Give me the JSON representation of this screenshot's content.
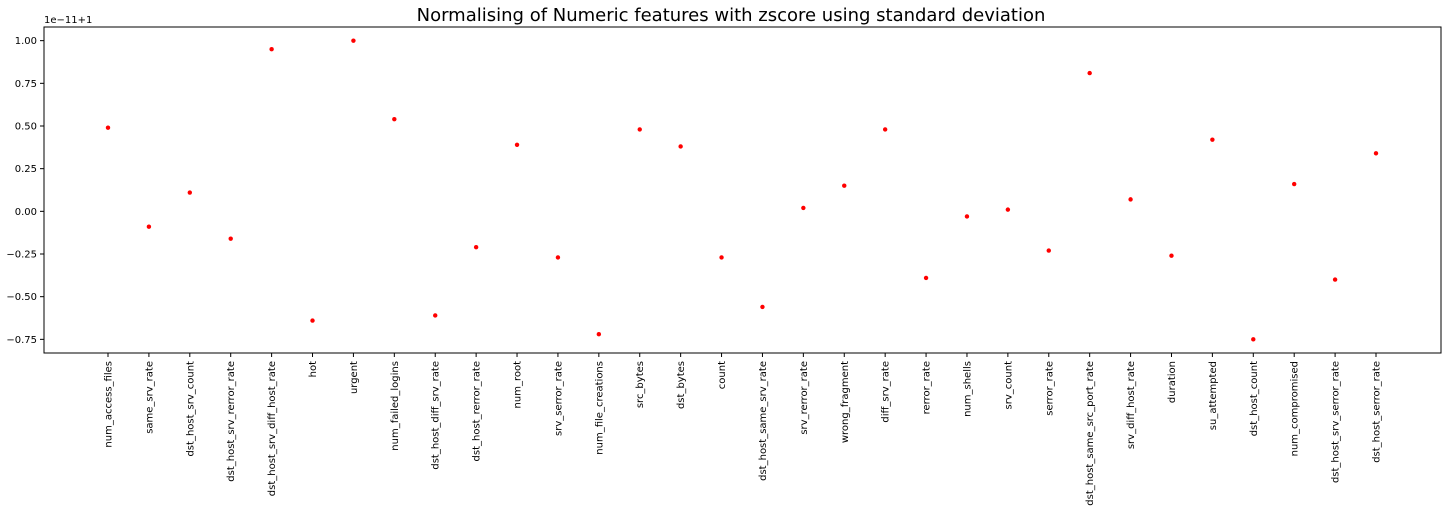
{
  "chart_data": {
    "type": "scatter",
    "title": "Normalising of Numeric features with zscore using standard deviation",
    "xlabel": "",
    "ylabel": "",
    "y_offset_label": "1e−11+1",
    "marker_color": "#ff0000",
    "grid": false,
    "ylim": [
      -0.83,
      1.08
    ],
    "y_ticks": [
      -0.75,
      -0.5,
      -0.25,
      0.0,
      0.25,
      0.5,
      0.75,
      1.0
    ],
    "y_tick_labels": [
      "−0.75",
      "−0.50",
      "−0.25",
      "0.00",
      "0.25",
      "0.50",
      "0.75",
      "1.00"
    ],
    "categories": [
      "num_access_files",
      "same_srv_rate",
      "dst_host_srv_count",
      "dst_host_srv_rerror_rate",
      "dst_host_srv_diff_host_rate",
      "hot",
      "urgent",
      "num_failed_logins",
      "dst_host_diff_srv_rate",
      "dst_host_rerror_rate",
      "num_root",
      "srv_serror_rate",
      "num_file_creations",
      "src_bytes",
      "dst_bytes",
      "count",
      "dst_host_same_srv_rate",
      "srv_rerror_rate",
      "wrong_fragment",
      "diff_srv_rate",
      "rerror_rate",
      "num_shells",
      "srv_count",
      "serror_rate",
      "dst_host_same_src_port_rate",
      "srv_diff_host_rate",
      "duration",
      "su_attempted",
      "dst_host_count",
      "num_compromised",
      "dst_host_srv_serror_rate",
      "dst_host_serror_rate"
    ],
    "values": [
      0.49,
      -0.09,
      0.11,
      -0.16,
      0.95,
      -0.64,
      1.0,
      0.54,
      -0.61,
      -0.21,
      0.39,
      -0.27,
      -0.72,
      0.48,
      0.38,
      -0.27,
      -0.56,
      0.02,
      0.15,
      0.48,
      -0.39,
      -0.03,
      0.01,
      -0.23,
      0.81,
      0.07,
      -0.26,
      0.42,
      -0.75,
      0.16,
      -0.4,
      0.34
    ]
  }
}
